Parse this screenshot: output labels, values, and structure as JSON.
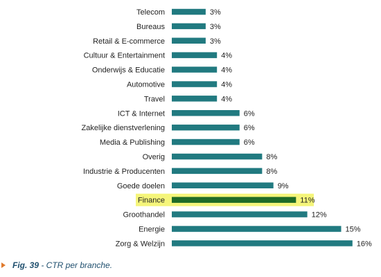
{
  "chart_data": {
    "type": "bar",
    "orientation": "horizontal",
    "categories": [
      "Telecom",
      "Bureaus",
      "Retail & E-commerce",
      "Cultuur & Entertainment",
      "Onderwijs & Educatie",
      "Automotive",
      "Travel",
      "ICT & Internet",
      "Zakelijke dienstverlening",
      "Media & Publishing",
      "Overig",
      "Industrie & Producenten",
      "Goede doelen",
      "Finance",
      "Groothandel",
      "Energie",
      "Zorg & Welzijn"
    ],
    "values": [
      3,
      3,
      3,
      4,
      4,
      4,
      4,
      6,
      6,
      6,
      8,
      8,
      9,
      11,
      12,
      15,
      16
    ],
    "value_labels": [
      "3%",
      "3%",
      "3%",
      "4%",
      "4%",
      "4%",
      "4%",
      "6%",
      "6%",
      "6%",
      "8%",
      "8%",
      "9%",
      "11%",
      "12%",
      "15%",
      "16%"
    ],
    "highlight": "Finance",
    "xlim": [
      0,
      16
    ],
    "grid": false,
    "colors": {
      "bar": "#217a80",
      "highlight_bar": "#1e6b27",
      "highlight_band": "#f5f57a"
    }
  },
  "caption": {
    "fig": "Fig. 39",
    "text": " - CTR per branche.",
    "arrow_color": "#e07a2d"
  }
}
